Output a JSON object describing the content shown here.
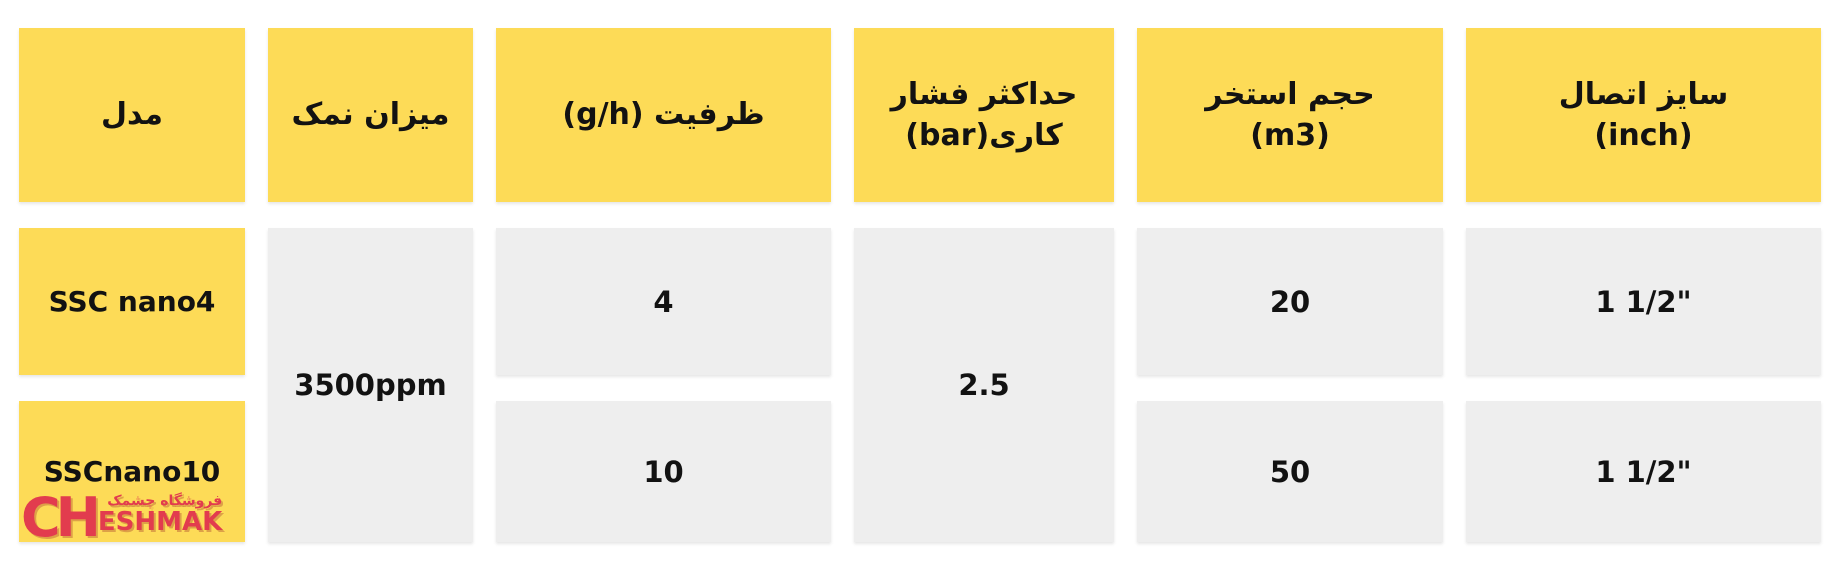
{
  "theme": {
    "header_bg": "#FDDB57",
    "value_cell_bg": "#EEEEEE",
    "text_color": "#121212",
    "logo_red": "#E23C4E",
    "page_bg": "#FFFFFF"
  },
  "table": {
    "direction": "rtl",
    "columns": [
      {
        "id": "model",
        "header_lines": [
          "مدل"
        ],
        "cells": [
          "SSC nano4",
          "SSCnano10"
        ]
      },
      {
        "id": "salt-level",
        "header_lines": [
          "میزان نمک"
        ],
        "merged_cell": "3500ppm"
      },
      {
        "id": "capacity-g-h",
        "header_lines": [
          "ظرفیت  (g/h)"
        ],
        "cells": [
          "4",
          "10"
        ]
      },
      {
        "id": "max-working-pressure-bar",
        "header_lines": [
          "حداکثر فشار",
          "کاری(bar)"
        ],
        "merged_cell": "2.5"
      },
      {
        "id": "pool-volume-m3",
        "header_lines": [
          "حجم استخر",
          "(m3)"
        ],
        "cells": [
          "20",
          "50"
        ]
      },
      {
        "id": "connection-size-inch",
        "header_lines": [
          "سایز اتصال",
          "(inch)"
        ],
        "cells": [
          "1 1/2\"",
          "1 1/2\""
        ]
      }
    ]
  },
  "logo": {
    "prefix": "CH",
    "suffix": "ESHMAK",
    "tagline": "فروشگاه چشمک"
  }
}
